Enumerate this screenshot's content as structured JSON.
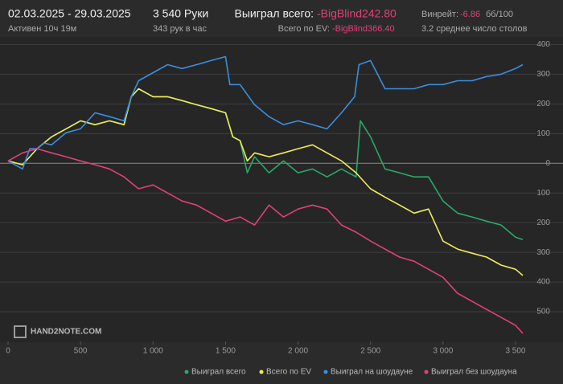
{
  "header": {
    "period": "02.03.2025 - 29.03.2025",
    "active": "Активен 10ч 19м",
    "hands": "3 540 Руки",
    "hands_per_hour": "343 рук в час",
    "won_label": "Выиграл всего:",
    "won_value": "-BigBlind242.80",
    "ev_label": "Всего по EV:",
    "ev_value": "-BigBlind366.40",
    "winrate_label": "Винрейт:",
    "winrate_value": "-6.86",
    "winrate_unit": "бб/100",
    "tables": "3.2 среднее число столов",
    "logo": "HAND2NOTE.COM"
  },
  "chart_data": {
    "type": "line",
    "xlim": [
      0,
      3550
    ],
    "xticks": [
      0,
      500,
      {
        "value": 1000,
        "label": "1 000"
      },
      {
        "value": 1500,
        "label": "1 500"
      },
      {
        "value": 2000,
        "label": "2 000"
      },
      {
        "value": 2500,
        "label": "2 500"
      },
      {
        "value": 3000,
        "label": "3 000"
      },
      {
        "value": 3500,
        "label": "3 500"
      }
    ],
    "ylim": [
      -600,
      420
    ],
    "yticks": [
      400,
      300,
      200,
      100,
      0,
      {
        "value": -100,
        "label": "100"
      },
      {
        "value": -200,
        "label": "200"
      },
      {
        "value": -300,
        "label": "300"
      },
      {
        "value": -400,
        "label": "400"
      },
      {
        "value": -500,
        "label": "500"
      }
    ],
    "grid": true,
    "series": [
      {
        "name": "Выиграл всего",
        "color": "#2aa86a",
        "x": [
          0,
          100,
          200,
          300,
          400,
          500,
          600,
          700,
          800,
          850,
          900,
          1000,
          1100,
          1200,
          1300,
          1400,
          1500,
          1550,
          1600,
          1650,
          1700,
          1800,
          1900,
          2000,
          2100,
          2200,
          2300,
          2400,
          2430,
          2500,
          2600,
          2700,
          2800,
          2900,
          3000,
          3100,
          3200,
          3300,
          3400,
          3500,
          3550
        ],
        "values": [
          8,
          -5,
          49,
          89,
          116,
          143,
          130,
          143,
          130,
          224,
          251,
          224,
          224,
          211,
          197,
          184,
          170,
          89,
          76,
          -32,
          22,
          -32,
          8,
          -32,
          -19,
          -46,
          -19,
          -46,
          143,
          89,
          -19,
          -32,
          -46,
          -46,
          -127,
          -168,
          -181,
          -195,
          -208,
          -249,
          -257
        ]
      },
      {
        "name": "Всего по EV",
        "color": "#f0ec5a",
        "x": [
          0,
          100,
          200,
          300,
          400,
          500,
          600,
          700,
          800,
          850,
          900,
          1000,
          1100,
          1200,
          1300,
          1400,
          1500,
          1550,
          1600,
          1650,
          1700,
          1800,
          1900,
          2000,
          2100,
          2200,
          2300,
          2400,
          2500,
          2600,
          2700,
          2800,
          2900,
          3000,
          3100,
          3200,
          3300,
          3400,
          3500,
          3550
        ],
        "values": [
          8,
          -5,
          49,
          89,
          116,
          143,
          130,
          143,
          130,
          224,
          251,
          224,
          224,
          211,
          197,
          184,
          170,
          89,
          76,
          8,
          35,
          22,
          35,
          49,
          62,
          35,
          8,
          -32,
          -86,
          -114,
          -141,
          -168,
          -154,
          -262,
          -289,
          -303,
          -316,
          -343,
          -357,
          -378
        ]
      },
      {
        "name": "Выиграл на шоудауне",
        "color": "#3a8ee0",
        "x": [
          0,
          100,
          150,
          200,
          250,
          300,
          400,
          500,
          600,
          700,
          800,
          850,
          900,
          1000,
          1100,
          1200,
          1300,
          1400,
          1500,
          1530,
          1600,
          1700,
          1800,
          1900,
          2000,
          2100,
          2200,
          2300,
          2390,
          2420,
          2500,
          2600,
          2700,
          2800,
          2900,
          3000,
          3100,
          3200,
          3300,
          3400,
          3500,
          3550
        ],
        "values": [
          8,
          -19,
          49,
          49,
          68,
          62,
          103,
          116,
          170,
          157,
          143,
          224,
          278,
          305,
          332,
          319,
          332,
          346,
          359,
          265,
          265,
          197,
          157,
          130,
          143,
          130,
          116,
          170,
          224,
          332,
          346,
          251,
          251,
          251,
          265,
          265,
          278,
          278,
          292,
          300,
          319,
          332
        ]
      },
      {
        "name": "Выиграл без шоудауна",
        "color": "#e0407a",
        "x": [
          0,
          100,
          200,
          300,
          400,
          500,
          600,
          700,
          800,
          900,
          1000,
          1100,
          1200,
          1300,
          1400,
          1500,
          1600,
          1700,
          1800,
          1900,
          2000,
          2100,
          2200,
          2300,
          2400,
          2500,
          2600,
          2700,
          2800,
          2900,
          3000,
          3100,
          3200,
          3300,
          3400,
          3500,
          3550
        ],
        "values": [
          8,
          35,
          49,
          35,
          22,
          8,
          -5,
          -19,
          -46,
          -86,
          -73,
          -100,
          -127,
          -141,
          -168,
          -195,
          -181,
          -208,
          -141,
          -181,
          -154,
          -141,
          -154,
          -208,
          -232,
          -262,
          -289,
          -316,
          -330,
          -357,
          -384,
          -438,
          -465,
          -492,
          -519,
          -546,
          -573
        ]
      }
    ]
  }
}
